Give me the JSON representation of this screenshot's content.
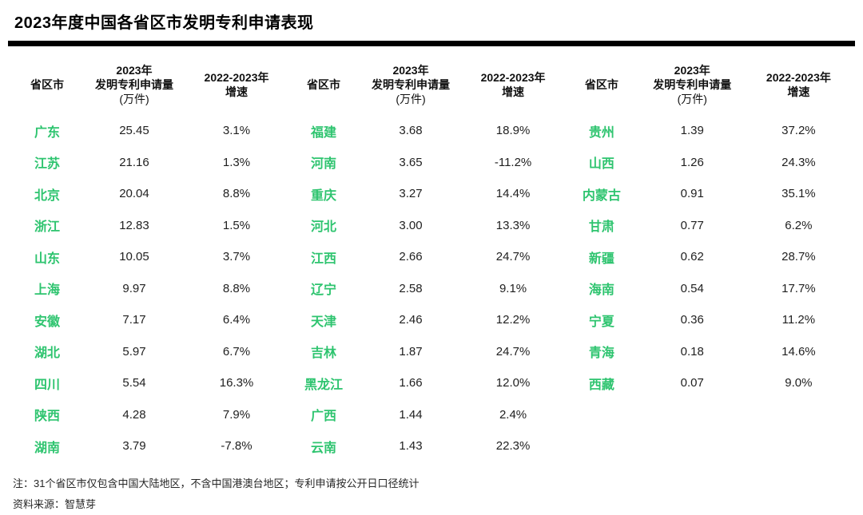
{
  "title": "2023年度中国各省区市发明专利申请表现",
  "table": {
    "headers": {
      "province": "省区市",
      "volume_line1": "2023年",
      "volume_line2": "发明专利申请量",
      "volume_unit": "(万件)",
      "growth_line1": "2022-2023年",
      "growth_line2": "增速"
    },
    "groups": [
      {
        "rows": [
          [
            "广东",
            "25.45",
            "3.1%"
          ],
          [
            "江苏",
            "21.16",
            "1.3%"
          ],
          [
            "北京",
            "20.04",
            "8.8%"
          ],
          [
            "浙江",
            "12.83",
            "1.5%"
          ],
          [
            "山东",
            "10.05",
            "3.7%"
          ],
          [
            "上海",
            "9.97",
            "8.8%"
          ],
          [
            "安徽",
            "7.17",
            "6.4%"
          ],
          [
            "湖北",
            "5.97",
            "6.7%"
          ],
          [
            "四川",
            "5.54",
            "16.3%"
          ],
          [
            "陕西",
            "4.28",
            "7.9%"
          ],
          [
            "湖南",
            "3.79",
            "-7.8%"
          ]
        ]
      },
      {
        "rows": [
          [
            "福建",
            "3.68",
            "18.9%"
          ],
          [
            "河南",
            "3.65",
            "-11.2%"
          ],
          [
            "重庆",
            "3.27",
            "14.4%"
          ],
          [
            "河北",
            "3.00",
            "13.3%"
          ],
          [
            "江西",
            "2.66",
            "24.7%"
          ],
          [
            "辽宁",
            "2.58",
            "9.1%"
          ],
          [
            "天津",
            "2.46",
            "12.2%"
          ],
          [
            "吉林",
            "1.87",
            "24.7%"
          ],
          [
            "黑龙江",
            "1.66",
            "12.0%"
          ],
          [
            "广西",
            "1.44",
            "2.4%"
          ],
          [
            "云南",
            "1.43",
            "22.3%"
          ]
        ]
      },
      {
        "rows": [
          [
            "贵州",
            "1.39",
            "37.2%"
          ],
          [
            "山西",
            "1.26",
            "24.3%"
          ],
          [
            "内蒙古",
            "0.91",
            "35.1%"
          ],
          [
            "甘肃",
            "0.77",
            "6.2%"
          ],
          [
            "新疆",
            "0.62",
            "28.7%"
          ],
          [
            "海南",
            "0.54",
            "17.7%"
          ],
          [
            "宁夏",
            "0.36",
            "11.2%"
          ],
          [
            "青海",
            "0.18",
            "14.6%"
          ],
          [
            "西藏",
            "0.07",
            "9.0%"
          ]
        ]
      }
    ]
  },
  "notes": {
    "note": "注：31个省区市仅包含中国大陆地区，不含中国港澳台地区；专利申请按公开日口径统计",
    "source": "资料来源：智慧芽"
  },
  "colors": {
    "province_green": "#2EC46F",
    "title_black": "#000000",
    "value_text": "#1F1F1F"
  },
  "chart_data": {
    "type": "table",
    "title": "2023年度中国各省区市发明专利申请表现",
    "columns": [
      "省区市",
      "2023年发明专利申请量(万件)",
      "2022-2023年增速(%)"
    ],
    "rows": [
      [
        "广东",
        25.45,
        3.1
      ],
      [
        "江苏",
        21.16,
        1.3
      ],
      [
        "北京",
        20.04,
        8.8
      ],
      [
        "浙江",
        12.83,
        1.5
      ],
      [
        "山东",
        10.05,
        3.7
      ],
      [
        "上海",
        9.97,
        8.8
      ],
      [
        "安徽",
        7.17,
        6.4
      ],
      [
        "湖北",
        5.97,
        6.7
      ],
      [
        "四川",
        5.54,
        16.3
      ],
      [
        "陕西",
        4.28,
        7.9
      ],
      [
        "湖南",
        3.79,
        -7.8
      ],
      [
        "福建",
        3.68,
        18.9
      ],
      [
        "河南",
        3.65,
        -11.2
      ],
      [
        "重庆",
        3.27,
        14.4
      ],
      [
        "河北",
        3.0,
        13.3
      ],
      [
        "江西",
        2.66,
        24.7
      ],
      [
        "辽宁",
        2.58,
        9.1
      ],
      [
        "天津",
        2.46,
        12.2
      ],
      [
        "吉林",
        1.87,
        24.7
      ],
      [
        "黑龙江",
        1.66,
        12.0
      ],
      [
        "广西",
        1.44,
        2.4
      ],
      [
        "云南",
        1.43,
        22.3
      ],
      [
        "贵州",
        1.39,
        37.2
      ],
      [
        "山西",
        1.26,
        24.3
      ],
      [
        "内蒙古",
        0.91,
        35.1
      ],
      [
        "甘肃",
        0.77,
        6.2
      ],
      [
        "新疆",
        0.62,
        28.7
      ],
      [
        "海南",
        0.54,
        17.7
      ],
      [
        "宁夏",
        0.36,
        11.2
      ],
      [
        "青海",
        0.18,
        14.6
      ],
      [
        "西藏",
        0.07,
        9.0
      ]
    ]
  }
}
